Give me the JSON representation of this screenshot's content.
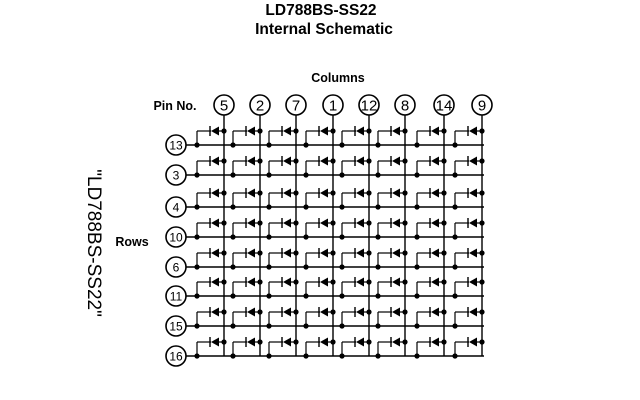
{
  "title_line1": "LD788BS-SS22",
  "title_line2": "Internal Schematic",
  "columns_label": "Columns",
  "pin_no_label": "Pin No.",
  "rows_label": "Rows",
  "side_label": "\"LD788BS-SS22\"",
  "column_pins": [
    "5",
    "2",
    "7",
    "1",
    "12",
    "8",
    "14",
    "9"
  ],
  "row_pins": [
    "13",
    "3",
    "4",
    "10",
    "6",
    "11",
    "15",
    "16"
  ],
  "matrix": {
    "rows": 8,
    "columns": 8,
    "element": "led-diode"
  },
  "colors": {
    "ink": "#000000",
    "background": "#ffffff"
  }
}
